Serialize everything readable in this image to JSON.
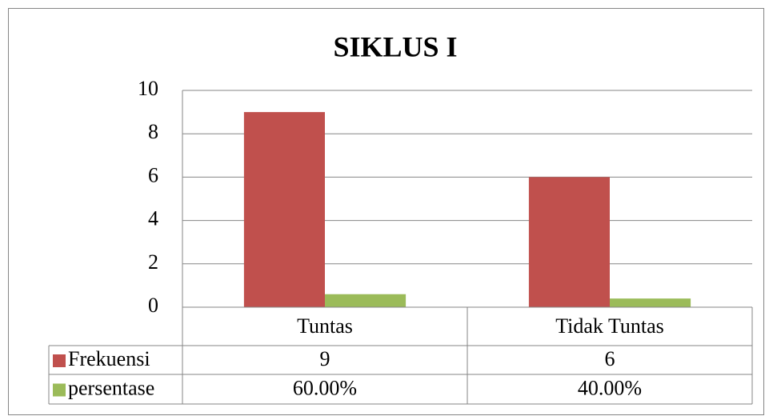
{
  "chart_data": {
    "type": "bar",
    "title": "SIKLUS I",
    "categories": [
      "Tuntas",
      "Tidak Tuntas"
    ],
    "series": [
      {
        "name": "Frekuensi",
        "color": "#c0504d",
        "values": [
          9,
          6
        ]
      },
      {
        "name": "persentase",
        "color": "#9bbb59",
        "values": [
          0.6,
          0.4
        ],
        "value_labels": [
          "60.00%",
          "40.00%"
        ]
      }
    ],
    "ylim": [
      0,
      10
    ],
    "yticks": [
      0,
      2,
      4,
      6,
      8,
      10
    ],
    "grid": true,
    "legend": "table"
  }
}
